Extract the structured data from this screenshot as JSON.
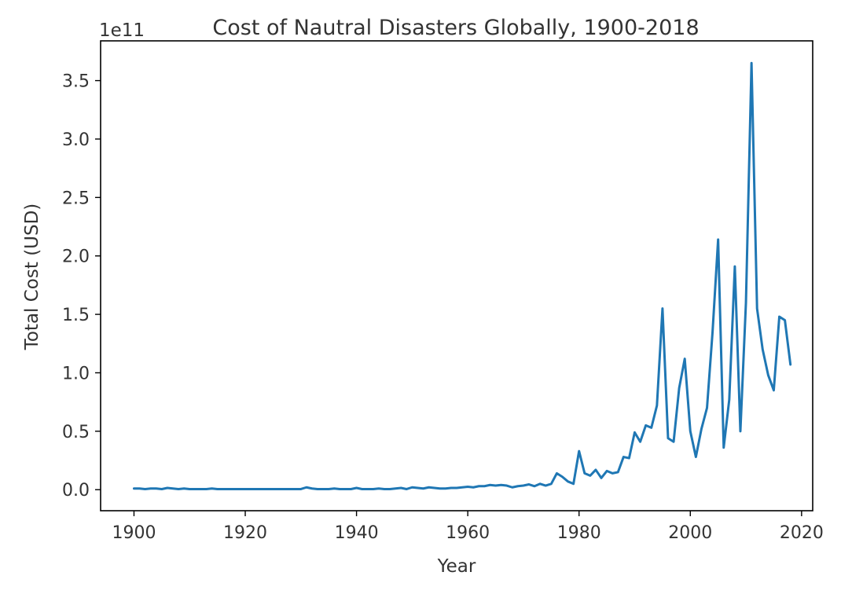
{
  "chart_data": {
    "type": "line",
    "title": "Cost of Nautral Disasters Globally, 1900-2018",
    "xlabel": "Year",
    "ylabel": "Total Cost (USD)",
    "y_offset_label": "1e11",
    "y_scale": 100000000000,
    "xlim": [
      1894,
      2022
    ],
    "ylim": [
      -0.18,
      3.84
    ],
    "x_ticks": [
      1900,
      1920,
      1940,
      1960,
      1980,
      2000,
      2020
    ],
    "y_ticks": [
      0.0,
      0.5,
      1.0,
      1.5,
      2.0,
      2.5,
      3.0,
      3.5
    ],
    "x_tick_labels": [
      "1900",
      "1920",
      "1940",
      "1960",
      "1980",
      "2000",
      "2020"
    ],
    "y_tick_labels": [
      "0.0",
      "0.5",
      "1.0",
      "1.5",
      "2.0",
      "2.5",
      "3.0",
      "3.5"
    ],
    "grid": false,
    "series": [
      {
        "color": "#1f77b4",
        "x": [
          1900,
          1901,
          1902,
          1903,
          1904,
          1905,
          1906,
          1907,
          1908,
          1909,
          1910,
          1911,
          1912,
          1913,
          1914,
          1915,
          1916,
          1917,
          1918,
          1919,
          1920,
          1921,
          1922,
          1923,
          1924,
          1925,
          1926,
          1927,
          1928,
          1929,
          1930,
          1931,
          1932,
          1933,
          1934,
          1935,
          1936,
          1937,
          1938,
          1939,
          1940,
          1941,
          1942,
          1943,
          1944,
          1945,
          1946,
          1947,
          1948,
          1949,
          1950,
          1951,
          1952,
          1953,
          1954,
          1955,
          1956,
          1957,
          1958,
          1959,
          1960,
          1961,
          1962,
          1963,
          1964,
          1965,
          1966,
          1967,
          1968,
          1969,
          1970,
          1971,
          1972,
          1973,
          1974,
          1975,
          1976,
          1977,
          1978,
          1979,
          1980,
          1981,
          1982,
          1983,
          1984,
          1985,
          1986,
          1987,
          1988,
          1989,
          1990,
          1991,
          1992,
          1993,
          1994,
          1995,
          1996,
          1997,
          1998,
          1999,
          2000,
          2001,
          2002,
          2003,
          2004,
          2005,
          2006,
          2007,
          2008,
          2009,
          2010,
          2011,
          2012,
          2013,
          2014,
          2015,
          2016,
          2017,
          2018
        ],
        "y": [
          0.01,
          0.01,
          0.005,
          0.01,
          0.01,
          0.005,
          0.015,
          0.01,
          0.005,
          0.01,
          0.005,
          0.005,
          0.005,
          0.005,
          0.01,
          0.005,
          0.005,
          0.005,
          0.005,
          0.005,
          0.005,
          0.005,
          0.005,
          0.005,
          0.005,
          0.005,
          0.005,
          0.005,
          0.005,
          0.005,
          0.005,
          0.02,
          0.01,
          0.005,
          0.005,
          0.005,
          0.01,
          0.005,
          0.005,
          0.005,
          0.015,
          0.005,
          0.005,
          0.005,
          0.01,
          0.005,
          0.005,
          0.01,
          0.015,
          0.005,
          0.02,
          0.015,
          0.01,
          0.02,
          0.015,
          0.01,
          0.01,
          0.015,
          0.015,
          0.02,
          0.025,
          0.02,
          0.03,
          0.03,
          0.04,
          0.035,
          0.04,
          0.035,
          0.02,
          0.03,
          0.035,
          0.045,
          0.03,
          0.05,
          0.035,
          0.05,
          0.14,
          0.11,
          0.07,
          0.05,
          0.33,
          0.14,
          0.12,
          0.17,
          0.1,
          0.16,
          0.14,
          0.15,
          0.28,
          0.27,
          0.49,
          0.41,
          0.55,
          0.53,
          0.72,
          1.55,
          0.44,
          0.41,
          0.87,
          1.12,
          0.5,
          0.28,
          0.52,
          0.7,
          1.35,
          2.14,
          0.36,
          0.77,
          1.91,
          0.5,
          1.6,
          3.65,
          1.55,
          1.2,
          0.98,
          0.85,
          1.48,
          1.45,
          1.07
        ]
      }
    ]
  }
}
